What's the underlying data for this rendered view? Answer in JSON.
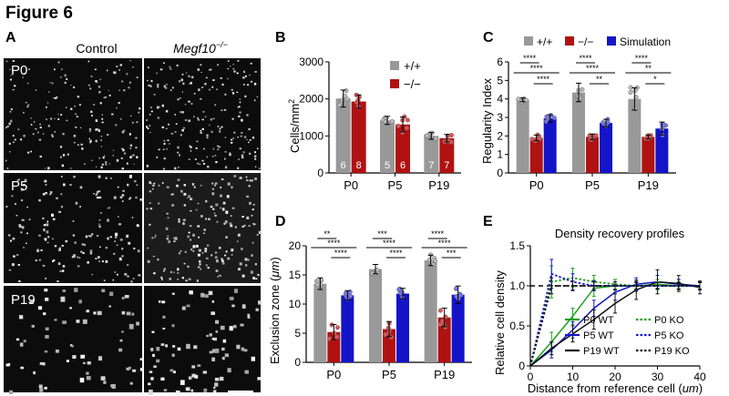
{
  "figure_title": "Figure 6",
  "panel_a": {
    "label": "A",
    "col_control": "Control",
    "col_mutant_gene": "Megf10",
    "col_mutant_sup": "−/−",
    "rows": [
      "P0",
      "P5",
      "P19"
    ]
  },
  "chart_data": [
    {
      "panel": "B",
      "type": "bar",
      "title": "",
      "ylabel": "Cells/mm",
      "ylabel_sup": "2",
      "categories": [
        "P0",
        "P5",
        "P19"
      ],
      "ylim": [
        0,
        3000
      ],
      "yticks": [
        0,
        1000,
        2000,
        3000
      ],
      "legend": [
        "+/+",
        "−/−"
      ],
      "colors": [
        "#999999",
        "#b01212"
      ],
      "series": [
        {
          "name": "+/+",
          "values": [
            2010,
            1420,
            1000
          ],
          "err": [
            230,
            110,
            90
          ],
          "n": [
            "6",
            "5",
            "7"
          ]
        },
        {
          "name": "−/−",
          "values": [
            1930,
            1310,
            940
          ],
          "err": [
            180,
            200,
            100
          ],
          "n": [
            "8",
            "6",
            "7"
          ]
        }
      ]
    },
    {
      "panel": "C",
      "type": "bar",
      "ylabel": "Regularity Index",
      "categories": [
        "P0",
        "P5",
        "P19"
      ],
      "ylim": [
        0,
        6
      ],
      "yticks": [
        0,
        1,
        2,
        3,
        4,
        5,
        6
      ],
      "legend": [
        "+/+",
        "−/−",
        "Simulation"
      ],
      "colors": [
        "#999999",
        "#b01212",
        "#1414c8"
      ],
      "series": [
        {
          "name": "+/+",
          "values": [
            3.95,
            4.35,
            4.0
          ],
          "err": [
            0.1,
            0.5,
            0.6
          ]
        },
        {
          "name": "−/−",
          "values": [
            1.9,
            1.95,
            1.95
          ],
          "err": [
            0.15,
            0.15,
            0.1
          ]
        },
        {
          "name": "Simulation",
          "values": [
            2.95,
            2.7,
            2.4
          ],
          "err": [
            0.2,
            0.2,
            0.35
          ]
        }
      ],
      "significance": [
        [
          "****",
          "****",
          "****"
        ],
        [
          "****",
          "****",
          "**"
        ],
        [
          "****",
          "**",
          "*"
        ]
      ]
    },
    {
      "panel": "D",
      "type": "bar",
      "ylabel": "Exclusion zone (",
      "ylabel_unit": "μm",
      "ylabel_end": ")",
      "categories": [
        "P0",
        "P5",
        "P19"
      ],
      "ylim": [
        0,
        20
      ],
      "yticks": [
        0,
        5,
        10,
        15,
        20
      ],
      "colors": [
        "#999999",
        "#b01212",
        "#1414c8"
      ],
      "series": [
        {
          "name": "+/+",
          "values": [
            13.5,
            16.0,
            17.5
          ],
          "err": [
            1.0,
            0.8,
            0.9
          ]
        },
        {
          "name": "−/−",
          "values": [
            5.2,
            5.7,
            7.7
          ],
          "err": [
            1.3,
            1.3,
            1.6
          ]
        },
        {
          "name": "Simulation",
          "values": [
            11.5,
            11.8,
            11.6
          ],
          "err": [
            0.8,
            0.9,
            1.5
          ]
        }
      ],
      "significance": [
        [
          "**",
          "****",
          "****"
        ],
        [
          "***",
          "****",
          "****"
        ],
        [
          "****",
          "****",
          "***"
        ]
      ]
    },
    {
      "panel": "E",
      "type": "line",
      "title": "Density recovery profiles",
      "xlabel": "Distance from reference cell (",
      "xlabel_unit": "um",
      "xlabel_end": ")",
      "ylabel": "Relative cell density",
      "xlim": [
        0,
        40
      ],
      "ylim": [
        0,
        1.5
      ],
      "xticks": [
        0,
        10,
        20,
        30,
        40
      ],
      "yticks": [
        0,
        0.5,
        1.0,
        1.5
      ],
      "ytick_labels": [
        "0",
        "0.5",
        "1.0",
        "1.5"
      ],
      "x": [
        0,
        5,
        10,
        15,
        20,
        25,
        30,
        35,
        40
      ],
      "series": [
        {
          "name": "P0 WT",
          "color": "#1aa01a",
          "dash": false,
          "values": [
            0.0,
            0.3,
            0.62,
            0.97,
            1.0,
            1.0,
            1.02,
            1.0,
            1.0
          ],
          "err": [
            0.0,
            0.12,
            0.1,
            0.1,
            0.08,
            0.07,
            0.06,
            0.05,
            0.05
          ]
        },
        {
          "name": "P5 WT",
          "color": "#1414c8",
          "dash": false,
          "values": [
            0.0,
            0.2,
            0.45,
            0.72,
            0.92,
            1.02,
            1.05,
            1.02,
            1.0
          ],
          "err": [
            0.0,
            0.1,
            0.1,
            0.1,
            0.1,
            0.08,
            0.08,
            0.06,
            0.05
          ]
        },
        {
          "name": "P19 WT",
          "color": "#111111",
          "dash": false,
          "values": [
            0.0,
            0.22,
            0.4,
            0.58,
            0.78,
            0.95,
            1.05,
            1.03,
            0.98
          ],
          "err": [
            0.0,
            0.08,
            0.1,
            0.12,
            0.12,
            0.12,
            0.15,
            0.1,
            0.08
          ]
        },
        {
          "name": "P0 KO",
          "color": "#1aa01a",
          "dash": true,
          "values": [
            0.0,
            1.05,
            1.1,
            1.05,
            1.02,
            1.0,
            1.0,
            1.0,
            1.0
          ],
          "err": [
            0.0,
            0.2,
            0.12,
            0.08,
            0.06,
            0.05,
            0.05,
            0.04,
            0.04
          ]
        },
        {
          "name": "P5 KO",
          "color": "#1414c8",
          "dash": true,
          "values": [
            0.0,
            1.15,
            1.05,
            1.0,
            1.0,
            1.0,
            1.0,
            1.0,
            1.0
          ],
          "err": [
            0.0,
            0.18,
            0.1,
            0.06,
            0.05,
            0.05,
            0.04,
            0.04,
            0.04
          ]
        },
        {
          "name": "P19 KO",
          "color": "#111111",
          "dash": true,
          "values": [
            0.0,
            1.0,
            1.0,
            1.0,
            1.0,
            1.0,
            1.0,
            1.0,
            1.0
          ],
          "err": [
            0.0,
            0.1,
            0.06,
            0.05,
            0.05,
            0.04,
            0.04,
            0.04,
            0.04
          ]
        }
      ]
    }
  ]
}
